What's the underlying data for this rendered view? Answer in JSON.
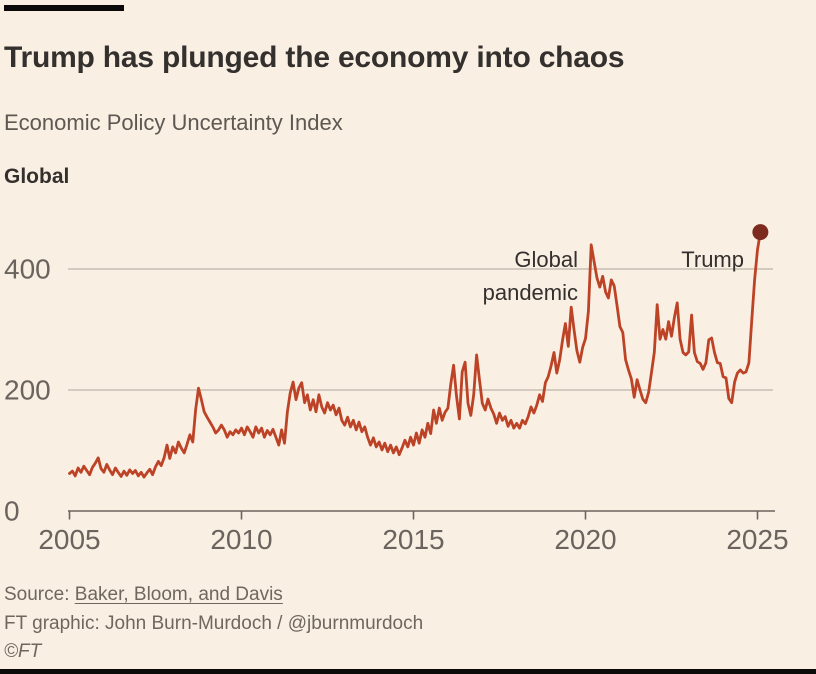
{
  "header": {
    "title": "Trump has plunged the economy into chaos",
    "subtitle": "Economic Policy Uncertainty Index",
    "series_label": "Global"
  },
  "footer": {
    "source_prefix": "Source: ",
    "source_link": "Baker, Bloom, and Davis",
    "credit": "FT graphic: John Burn-Murdoch / @jburnmurdoch",
    "copyright": "©FT"
  },
  "colors": {
    "background": "#faefe3",
    "bar_black": "#0b0a09",
    "title_text": "#33302e",
    "subtitle_text": "#5d5852",
    "grid": "#c8bfb4",
    "axis": "#6b645e",
    "tick_label": "#6b645e",
    "line": "#bd4327",
    "endpoint_dot": "#7c2b1e",
    "annotation_text": "#33302e",
    "footer_text": "#6f675e"
  },
  "chart_data": {
    "type": "line",
    "title": "Economic Policy Uncertainty Index",
    "series_name": "Global",
    "xlabel": "",
    "ylabel": "",
    "x_start": "2005-01",
    "frequency": "monthly",
    "x_ticks": [
      2005,
      2010,
      2015,
      2020,
      2025
    ],
    "y_ticks": [
      0,
      200,
      400
    ],
    "ylim": [
      0,
      480
    ],
    "xlim": [
      2005,
      2025.5
    ],
    "grid": "horizontal",
    "legend": "none",
    "endpoint_value": 461,
    "annotations": [
      {
        "name": "global-pandemic",
        "lines": [
          "Global",
          "pandemic"
        ],
        "anchor": {
          "year": 2020.25,
          "value": 440
        }
      },
      {
        "name": "trump",
        "lines": [
          "Trump"
        ],
        "anchor": {
          "year": 2025.1,
          "value": 461
        }
      }
    ],
    "values": [
      62,
      66,
      58,
      71,
      64,
      74,
      67,
      60,
      72,
      79,
      88,
      70,
      64,
      77,
      68,
      60,
      71,
      64,
      57,
      66,
      59,
      68,
      62,
      67,
      58,
      64,
      56,
      63,
      69,
      60,
      73,
      82,
      75,
      88,
      109,
      87,
      106,
      96,
      114,
      104,
      96,
      110,
      126,
      114,
      167,
      203,
      184,
      164,
      155,
      147,
      139,
      129,
      134,
      142,
      134,
      122,
      131,
      126,
      134,
      129,
      137,
      126,
      139,
      131,
      122,
      139,
      129,
      137,
      122,
      133,
      126,
      135,
      122,
      109,
      134,
      112,
      164,
      195,
      213,
      184,
      203,
      212,
      179,
      192,
      167,
      184,
      164,
      192,
      172,
      162,
      179,
      167,
      175,
      159,
      170,
      150,
      142,
      155,
      139,
      150,
      134,
      147,
      131,
      139,
      122,
      109,
      121,
      106,
      114,
      101,
      112,
      98,
      109,
      96,
      106,
      93,
      104,
      117,
      106,
      122,
      109,
      129,
      112,
      134,
      122,
      145,
      128,
      167,
      145,
      170,
      150,
      163,
      170,
      210,
      241,
      190,
      152,
      230,
      246,
      178,
      158,
      192,
      258,
      218,
      178,
      167,
      185,
      170,
      160,
      145,
      162,
      150,
      156,
      140,
      150,
      137,
      145,
      137,
      150,
      144,
      156,
      172,
      162,
      175,
      192,
      181,
      212,
      222,
      240,
      262,
      228,
      250,
      283,
      310,
      272,
      337,
      300,
      265,
      246,
      270,
      285,
      330,
      440,
      412,
      385,
      370,
      388,
      362,
      352,
      382,
      372,
      340,
      305,
      295,
      250,
      233,
      218,
      188,
      217,
      200,
      185,
      179,
      196,
      228,
      262,
      341,
      284,
      300,
      284,
      313,
      289,
      320,
      344,
      284,
      262,
      258,
      263,
      324,
      262,
      247,
      244,
      234,
      245,
      283,
      286,
      262,
      245,
      244,
      222,
      220,
      186,
      179,
      213,
      228,
      233,
      228,
      230,
      245,
      316,
      382,
      432,
      461
    ]
  }
}
